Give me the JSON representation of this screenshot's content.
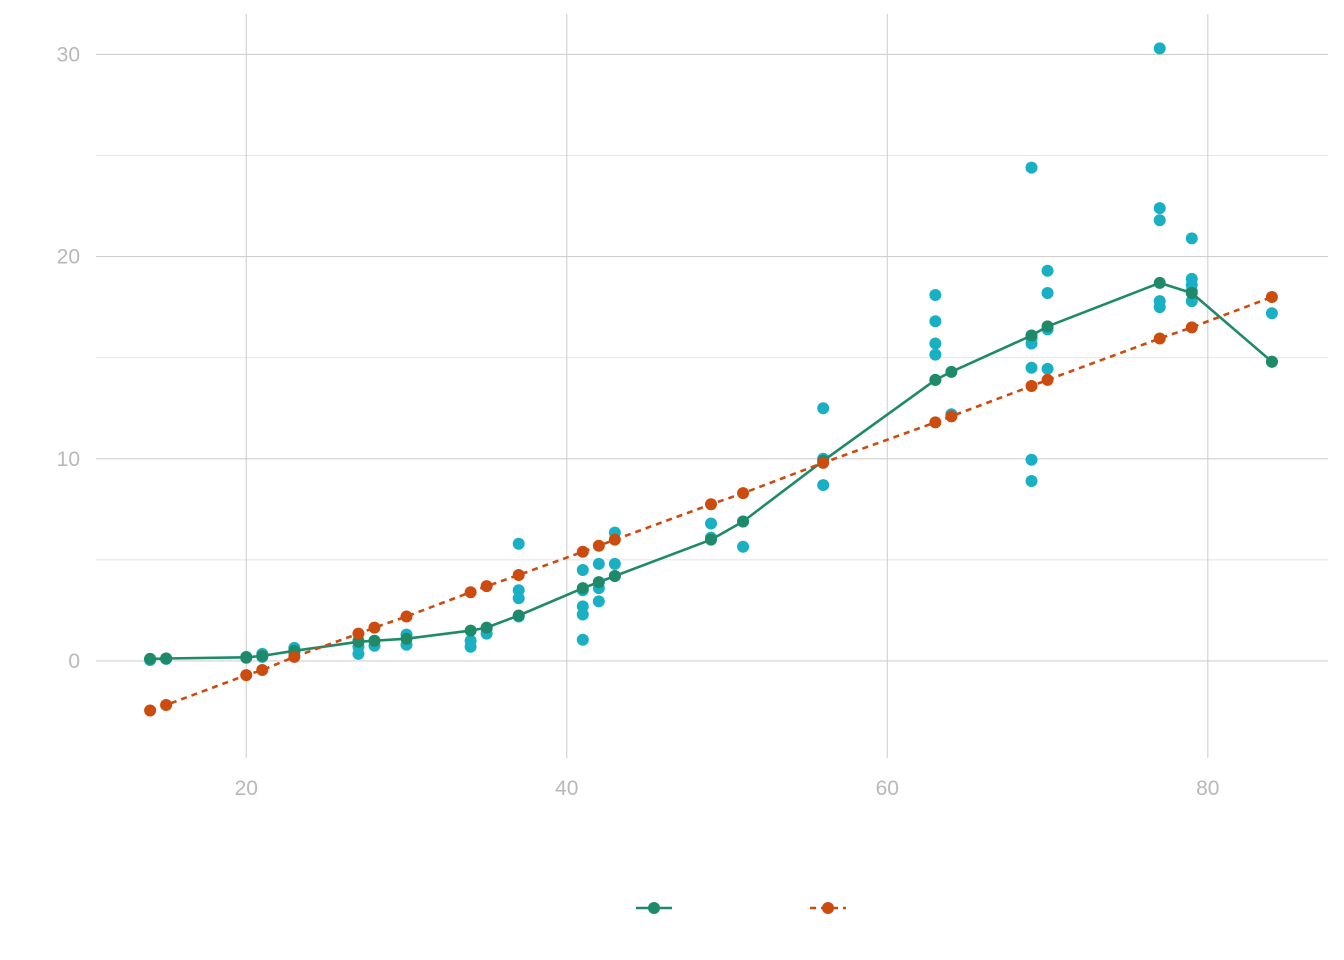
{
  "chart_data": {
    "type": "scatter",
    "title": "",
    "xlabel": "",
    "ylabel": "",
    "xlim": [
      10,
      87.5
    ],
    "ylim": [
      -4.8,
      32
    ],
    "x_ticks": [
      20,
      40,
      60,
      80
    ],
    "y_ticks": [
      0,
      10,
      20,
      30
    ],
    "x_tick_labels": [
      "20",
      "40",
      "60",
      "80"
    ],
    "y_tick_labels": [
      "0",
      "10",
      "20",
      "30"
    ],
    "grid": true,
    "legend_position": "bottom",
    "colors": {
      "points": "#1ab0c4",
      "mean_line": "#1e8a6a",
      "fit_line": "#cc4b0f"
    },
    "points": [
      [
        14,
        0.1
      ],
      [
        14,
        0.05
      ],
      [
        15,
        0.1
      ],
      [
        15,
        0.12
      ],
      [
        20,
        0.2
      ],
      [
        20,
        0.15
      ],
      [
        21,
        0.35
      ],
      [
        21,
        0.2
      ],
      [
        23,
        0.65
      ],
      [
        23,
        0.5
      ],
      [
        23,
        0.4
      ],
      [
        27,
        0.35
      ],
      [
        27,
        0.7
      ],
      [
        27,
        1.0
      ],
      [
        28,
        0.75
      ],
      [
        28,
        1.0
      ],
      [
        30,
        0.8
      ],
      [
        30,
        1.3
      ],
      [
        34,
        0.7
      ],
      [
        34,
        1.0
      ],
      [
        35,
        1.35
      ],
      [
        35,
        1.6
      ],
      [
        37,
        5.8
      ],
      [
        37,
        3.5
      ],
      [
        37,
        3.1
      ],
      [
        37,
        2.2
      ],
      [
        41,
        4.5
      ],
      [
        41,
        3.5
      ],
      [
        41,
        2.7
      ],
      [
        41,
        2.3
      ],
      [
        41,
        1.05
      ],
      [
        42,
        4.8
      ],
      [
        42,
        3.6
      ],
      [
        42,
        2.95
      ],
      [
        43,
        6.35
      ],
      [
        43,
        4.8
      ],
      [
        43,
        4.2
      ],
      [
        49,
        6.8
      ],
      [
        49,
        6.1
      ],
      [
        51,
        5.65
      ],
      [
        51,
        6.9
      ],
      [
        56,
        12.5
      ],
      [
        56,
        10.0
      ],
      [
        56,
        8.7
      ],
      [
        63,
        18.1
      ],
      [
        63,
        16.8
      ],
      [
        63,
        15.7
      ],
      [
        63,
        15.15
      ],
      [
        63,
        13.9
      ],
      [
        64,
        12.2
      ],
      [
        69,
        24.4
      ],
      [
        69,
        16.1
      ],
      [
        69,
        15.95
      ],
      [
        69,
        15.7
      ],
      [
        69,
        14.5
      ],
      [
        69,
        9.95
      ],
      [
        69,
        8.9
      ],
      [
        70,
        19.3
      ],
      [
        70,
        18.2
      ],
      [
        70,
        16.4
      ],
      [
        70,
        14.45
      ],
      [
        77,
        30.3
      ],
      [
        77,
        22.4
      ],
      [
        77,
        21.8
      ],
      [
        77,
        17.8
      ],
      [
        77,
        17.5
      ],
      [
        79,
        20.9
      ],
      [
        79,
        18.9
      ],
      [
        79,
        18.6
      ],
      [
        79,
        18.3
      ],
      [
        79,
        17.8
      ],
      [
        84,
        17.2
      ],
      [
        84,
        14.8
      ]
    ],
    "series": [
      {
        "style": "solid",
        "x": [
          14,
          15,
          20,
          21,
          23,
          27,
          28,
          30,
          34,
          35,
          37,
          41,
          42,
          43,
          49,
          51,
          56,
          63,
          64,
          69,
          70,
          77,
          79,
          84
        ],
        "y": [
          0.1,
          0.12,
          0.18,
          0.25,
          0.5,
          0.95,
          1.0,
          1.1,
          1.5,
          1.65,
          2.25,
          3.6,
          3.9,
          4.2,
          6.0,
          6.9,
          9.9,
          13.9,
          14.3,
          16.1,
          16.55,
          18.7,
          18.2,
          14.8
        ]
      },
      {
        "style": "dotted",
        "x": [
          14,
          15,
          20,
          21,
          23,
          27,
          28,
          30,
          34,
          35,
          37,
          41,
          42,
          43,
          49,
          51,
          56,
          63,
          64,
          69,
          70,
          77,
          79,
          84
        ],
        "y": [
          -2.45,
          -2.18,
          -0.7,
          -0.45,
          0.2,
          1.35,
          1.65,
          2.2,
          3.4,
          3.7,
          4.25,
          5.4,
          5.7,
          6.0,
          7.75,
          8.3,
          9.8,
          11.8,
          12.1,
          13.6,
          13.9,
          15.95,
          16.5,
          18.0
        ]
      }
    ]
  }
}
